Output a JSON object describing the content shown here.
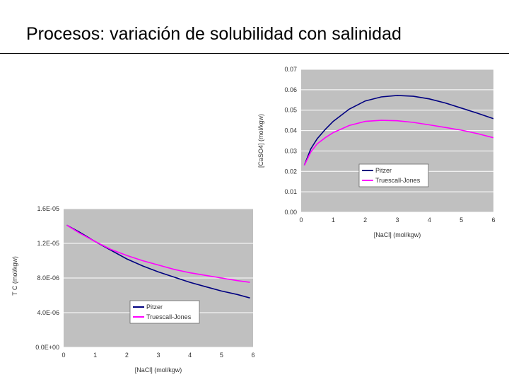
{
  "slide": {
    "title": "Procesos: variación de solubilidad con salinidad"
  },
  "chart_data": [
    {
      "id": "caso4",
      "type": "line",
      "xlabel": "[NaCl] (mol/kgw)",
      "ylabel": "[CaSO4] (mol/kgw)",
      "xlim": [
        0,
        6
      ],
      "ylim": [
        0,
        0.07
      ],
      "x_ticks": [
        0,
        1,
        2,
        3,
        4,
        5,
        6
      ],
      "y_ticks": [
        0,
        0.01,
        0.02,
        0.03,
        0.04,
        0.05,
        0.06,
        0.07
      ],
      "y_tick_labels": [
        "0.00",
        "0.01",
        "0.02",
        "0.03",
        "0.04",
        "0.05",
        "0.06",
        "0.07"
      ],
      "grid": true,
      "legend": "center-right",
      "series": [
        {
          "name": "Pitzer",
          "color": "#000080",
          "x": [
            0.1,
            0.3,
            0.5,
            0.75,
            1,
            1.5,
            2,
            2.5,
            3,
            3.5,
            4,
            4.5,
            5,
            5.5,
            6
          ],
          "y": [
            0.023,
            0.031,
            0.036,
            0.0405,
            0.0445,
            0.0505,
            0.0545,
            0.0565,
            0.0572,
            0.0568,
            0.0555,
            0.0535,
            0.051,
            0.0485,
            0.0458
          ]
        },
        {
          "name": "Truescall-Jones",
          "color": "#ff00ff",
          "x": [
            0.1,
            0.3,
            0.5,
            0.75,
            1,
            1.5,
            2,
            2.5,
            3,
            3.5,
            4,
            4.5,
            5,
            5.5,
            6
          ],
          "y": [
            0.023,
            0.0295,
            0.0335,
            0.0365,
            0.039,
            0.0425,
            0.0445,
            0.045,
            0.0448,
            0.044,
            0.0428,
            0.0415,
            0.0402,
            0.0385,
            0.0365
          ]
        }
      ]
    },
    {
      "id": "tc",
      "type": "line",
      "xlabel": "[NaCl] (mol/kgw)",
      "ylabel": "T C (mol/kgw)",
      "xlim": [
        0,
        6
      ],
      "ylim": [
        0,
        1.6e-05
      ],
      "x_ticks": [
        0,
        1,
        2,
        3,
        4,
        5,
        6
      ],
      "y_ticks": [
        0,
        4e-06,
        8e-06,
        1.2e-05,
        1.6e-05
      ],
      "y_tick_labels": [
        "0.0E+00",
        "4.0E-06",
        "8.0E-06",
        "1.2E-05",
        "1.6E-05"
      ],
      "grid": true,
      "legend": "lower-center",
      "series": [
        {
          "name": "Pitzer",
          "color": "#000080",
          "x": [
            0.1,
            0.5,
            1,
            1.5,
            2,
            2.5,
            3,
            3.5,
            4,
            4.5,
            5,
            5.5,
            5.9
          ],
          "y": [
            1.41e-05,
            1.33e-05,
            1.22e-05,
            1.12e-05,
            1.02e-05,
            9.4e-06,
            8.7e-06,
            8.1e-06,
            7.5e-06,
            7e-06,
            6.5e-06,
            6.1e-06,
            5.7e-06
          ]
        },
        {
          "name": "Truescall-Jones",
          "color": "#ff00ff",
          "x": [
            0.1,
            0.5,
            1,
            1.5,
            2,
            2.5,
            3,
            3.5,
            4,
            4.5,
            5,
            5.5,
            5.9
          ],
          "y": [
            1.41e-05,
            1.32e-05,
            1.22e-05,
            1.13e-05,
            1.06e-05,
            1e-05,
            9.5e-06,
            9e-06,
            8.6e-06,
            8.3e-06,
            8e-06,
            7.7e-06,
            7.5e-06
          ]
        }
      ]
    }
  ]
}
